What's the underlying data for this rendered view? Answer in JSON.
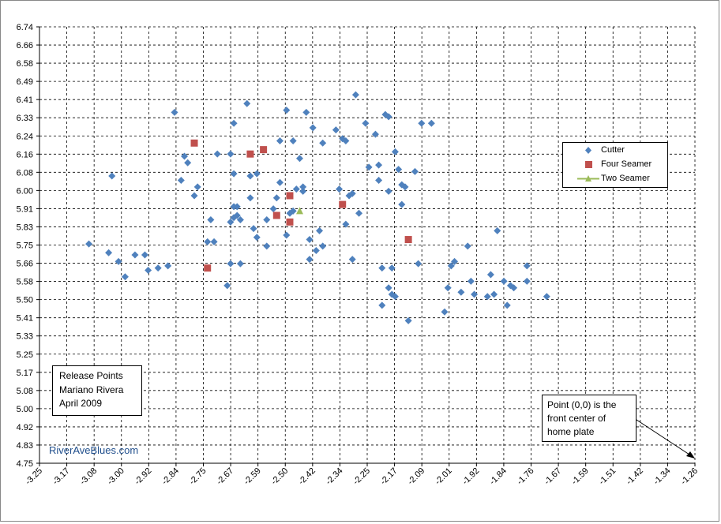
{
  "chart_data": {
    "type": "scatter",
    "xlim": [
      -3.25,
      -1.26
    ],
    "ylim": [
      4.75,
      6.74
    ],
    "x_ticks": [
      "-3.25",
      "-3.17",
      "-3.08",
      "-3.00",
      "-2.92",
      "-2.84",
      "-2.75",
      "-2.67",
      "-2.59",
      "-2.50",
      "-2.42",
      "-2.34",
      "-2.25",
      "-2.17",
      "-2.09",
      "-2.01",
      "-1.92",
      "-1.84",
      "-1.76",
      "-1.67",
      "-1.59",
      "-1.51",
      "-1.42",
      "-1.34",
      "-1.26"
    ],
    "y_ticks": [
      "4.75",
      "4.83",
      "4.92",
      "5.00",
      "5.08",
      "5.17",
      "5.25",
      "5.33",
      "5.41",
      "5.50",
      "5.58",
      "5.66",
      "5.75",
      "5.83",
      "5.91",
      "6.00",
      "6.08",
      "6.16",
      "6.24",
      "6.33",
      "6.41",
      "6.49",
      "6.58",
      "6.66",
      "6.74"
    ],
    "grid": true,
    "legend_position": "right",
    "series": [
      {
        "name": "Cutter",
        "color": "#4f81bd",
        "marker": "diamond",
        "points": [
          [
            -3.1,
            5.75
          ],
          [
            -3.04,
            5.71
          ],
          [
            -3.03,
            6.06
          ],
          [
            -3.01,
            5.67
          ],
          [
            -2.99,
            5.6
          ],
          [
            -2.96,
            5.7
          ],
          [
            -2.93,
            5.7
          ],
          [
            -2.92,
            5.63
          ],
          [
            -2.89,
            5.64
          ],
          [
            -2.86,
            5.65
          ],
          [
            -2.84,
            6.35
          ],
          [
            -2.82,
            6.04
          ],
          [
            -2.81,
            6.15
          ],
          [
            -2.8,
            6.12
          ],
          [
            -2.78,
            5.97
          ],
          [
            -2.77,
            6.01
          ],
          [
            -2.74,
            5.76
          ],
          [
            -2.73,
            5.86
          ],
          [
            -2.72,
            5.76
          ],
          [
            -2.71,
            6.16
          ],
          [
            -2.68,
            5.56
          ],
          [
            -2.67,
            6.16
          ],
          [
            -2.67,
            5.85
          ],
          [
            -2.66,
            6.3
          ],
          [
            -2.66,
            6.07
          ],
          [
            -2.66,
            5.92
          ],
          [
            -2.66,
            5.87
          ],
          [
            -2.65,
            5.88
          ],
          [
            -2.65,
            5.92
          ],
          [
            -2.64,
            5.86
          ],
          [
            -2.64,
            5.66
          ],
          [
            -2.67,
            5.66
          ],
          [
            -2.62,
            6.39
          ],
          [
            -2.61,
            6.06
          ],
          [
            -2.61,
            5.96
          ],
          [
            -2.6,
            5.82
          ],
          [
            -2.59,
            6.07
          ],
          [
            -2.59,
            5.78
          ],
          [
            -2.56,
            5.74
          ],
          [
            -2.56,
            5.86
          ],
          [
            -2.54,
            5.91
          ],
          [
            -2.53,
            5.96
          ],
          [
            -2.52,
            6.22
          ],
          [
            -2.52,
            6.03
          ],
          [
            -2.5,
            6.36
          ],
          [
            -2.5,
            5.79
          ],
          [
            -2.49,
            5.89
          ],
          [
            -2.48,
            5.9
          ],
          [
            -2.48,
            6.22
          ],
          [
            -2.47,
            6.0
          ],
          [
            -2.46,
            6.14
          ],
          [
            -2.45,
            5.99
          ],
          [
            -2.45,
            6.01
          ],
          [
            -2.44,
            6.35
          ],
          [
            -2.43,
            5.77
          ],
          [
            -2.42,
            6.28
          ],
          [
            -2.41,
            5.72
          ],
          [
            -2.4,
            5.81
          ],
          [
            -2.39,
            6.21
          ],
          [
            -2.39,
            5.74
          ],
          [
            -2.43,
            5.68
          ],
          [
            -2.35,
            6.27
          ],
          [
            -2.34,
            6.0
          ],
          [
            -2.33,
            6.23
          ],
          [
            -2.32,
            6.22
          ],
          [
            -2.32,
            5.84
          ],
          [
            -2.31,
            5.97
          ],
          [
            -2.3,
            5.98
          ],
          [
            -2.3,
            5.68
          ],
          [
            -2.29,
            6.43
          ],
          [
            -2.28,
            5.89
          ],
          [
            -2.26,
            6.3
          ],
          [
            -2.25,
            6.1
          ],
          [
            -2.23,
            6.25
          ],
          [
            -2.22,
            6.11
          ],
          [
            -2.22,
            6.04
          ],
          [
            -2.21,
            5.64
          ],
          [
            -2.21,
            5.47
          ],
          [
            -2.2,
            6.34
          ],
          [
            -2.19,
            6.33
          ],
          [
            -2.19,
            5.99
          ],
          [
            -2.19,
            5.55
          ],
          [
            -2.18,
            5.52
          ],
          [
            -2.18,
            5.64
          ],
          [
            -2.17,
            6.17
          ],
          [
            -2.16,
            6.09
          ],
          [
            -2.15,
            5.93
          ],
          [
            -2.15,
            6.02
          ],
          [
            -2.14,
            6.01
          ],
          [
            -2.13,
            5.4
          ],
          [
            -2.17,
            5.51
          ],
          [
            -2.11,
            6.08
          ],
          [
            -2.1,
            5.66
          ],
          [
            -2.09,
            6.3
          ],
          [
            -2.06,
            6.3
          ],
          [
            -2.02,
            5.44
          ],
          [
            -2.01,
            5.55
          ],
          [
            -2.0,
            5.65
          ],
          [
            -1.99,
            5.67
          ],
          [
            -1.97,
            5.53
          ],
          [
            -1.95,
            5.74
          ],
          [
            -1.94,
            5.58
          ],
          [
            -1.93,
            5.52
          ],
          [
            -1.89,
            5.51
          ],
          [
            -1.88,
            5.61
          ],
          [
            -1.87,
            5.52
          ],
          [
            -1.86,
            5.81
          ],
          [
            -1.84,
            5.58
          ],
          [
            -1.83,
            5.47
          ],
          [
            -1.82,
            5.56
          ],
          [
            -1.81,
            5.55
          ],
          [
            -1.77,
            5.58
          ],
          [
            -1.77,
            5.65
          ],
          [
            -1.71,
            5.51
          ]
        ]
      },
      {
        "name": "Four Seamer",
        "color": "#c0504d",
        "marker": "square",
        "points": [
          [
            -2.78,
            6.21
          ],
          [
            -2.74,
            5.64
          ],
          [
            -2.61,
            6.16
          ],
          [
            -2.57,
            6.18
          ],
          [
            -2.53,
            5.88
          ],
          [
            -2.49,
            5.97
          ],
          [
            -2.49,
            5.85
          ],
          [
            -2.33,
            5.93
          ],
          [
            -2.13,
            5.77
          ]
        ]
      },
      {
        "name": "Two Seamer",
        "color": "#9bbb59",
        "marker": "triangle",
        "points": [
          [
            -2.46,
            5.9
          ]
        ]
      }
    ]
  },
  "title_box": {
    "line1": "Release Points",
    "line2": "Mariano Rivera",
    "line3": "April 2009"
  },
  "note": {
    "line1": "Point (0,0) is the",
    "line2": "front center of",
    "line3": "home plate"
  },
  "watermark": "RiverAveBlues.com"
}
